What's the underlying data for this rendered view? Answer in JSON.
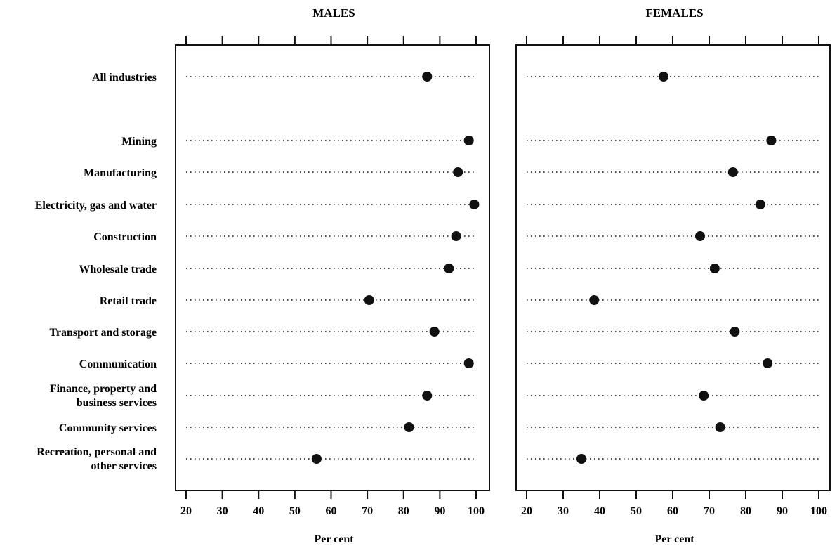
{
  "chart_data": {
    "type": "scatter",
    "subtype": "dot-plot",
    "categories": [
      "All industries",
      "Mining",
      "Manufacturing",
      "Electricity, gas and water",
      "Construction",
      "Wholesale trade",
      "Retail trade",
      "Transport and storage",
      "Communication",
      "Finance, property and\nbusiness services",
      "Community services",
      "Recreation, personal and\nother services"
    ],
    "panels": [
      {
        "title": "MALES",
        "xlabel": "Per cent",
        "xlim": [
          20,
          100
        ],
        "xticks": [
          20,
          30,
          40,
          50,
          60,
          70,
          80,
          90,
          100
        ],
        "values": [
          86.5,
          98,
          95,
          99.5,
          94.5,
          92.5,
          70.5,
          88.5,
          98,
          86.5,
          81.5,
          56
        ]
      },
      {
        "title": "FEMALES",
        "xlabel": "Per cent",
        "xlim": [
          20,
          100
        ],
        "xticks": [
          20,
          30,
          40,
          50,
          60,
          70,
          80,
          90,
          100
        ],
        "values": [
          57.5,
          87,
          76.5,
          84,
          67.5,
          71.5,
          38.5,
          77,
          86,
          68.5,
          73,
          35
        ]
      }
    ],
    "grid": "dotted guide lines per category",
    "legend": "none"
  }
}
